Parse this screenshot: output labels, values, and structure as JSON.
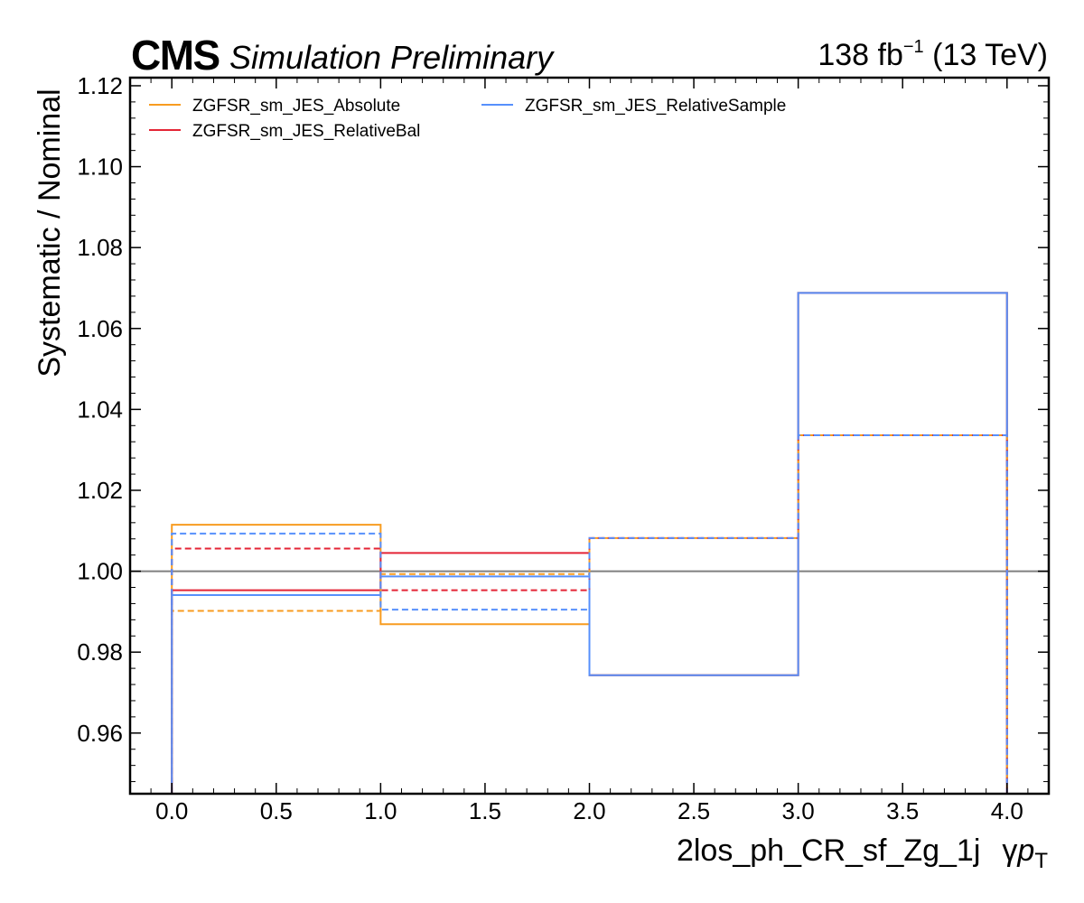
{
  "header": {
    "experiment": "CMS",
    "status": "Simulation Preliminary",
    "lumi_value": "138 fb",
    "lumi_exp": "−1",
    "energy": " (13 TeV)"
  },
  "chart_data": {
    "type": "line",
    "subtype": "step-histogram",
    "ylabel": "Systematic / Nominal",
    "xlabel_main": "2los_ph_CR_sf_Zg_1j",
    "xlabel_var": "γ",
    "xlabel_p": "p",
    "xlabel_sub": "T",
    "xlim": [
      -0.2,
      4.2
    ],
    "ylim": [
      0.945,
      1.122
    ],
    "xticks": [
      0.0,
      0.5,
      1.0,
      1.5,
      2.0,
      2.5,
      3.0,
      3.5,
      4.0
    ],
    "xtick_labels": [
      "0.0",
      "0.5",
      "1.0",
      "1.5",
      "2.0",
      "2.5",
      "3.0",
      "3.5",
      "4.0"
    ],
    "yticks": [
      0.96,
      0.98,
      1.0,
      1.02,
      1.04,
      1.06,
      1.08,
      1.1,
      1.12
    ],
    "ytick_labels": [
      "0.96",
      "0.98",
      "1.00",
      "1.02",
      "1.04",
      "1.06",
      "1.08",
      "1.10",
      "1.12"
    ],
    "bin_edges": [
      0,
      1,
      2,
      3,
      4
    ],
    "reference_line": 1.0,
    "legend_position": "top-left",
    "series": [
      {
        "name": "ZGFSR_sm_JES_Absolute",
        "color": "#f89c20",
        "style": "solid",
        "values": [
          1.0115,
          0.9869,
          0.9743,
          1.0688
        ]
      },
      {
        "name": "ZGFSR_sm_JES_RelativeBal",
        "color": "#e42536",
        "style": "solid",
        "values": [
          0.9953,
          1.0045,
          0.9743,
          1.0688
        ]
      },
      {
        "name": "ZGFSR_sm_JES_RelativeSample",
        "color": "#5790fc",
        "style": "solid",
        "values": [
          0.9941,
          0.9987,
          0.9743,
          1.0688
        ]
      },
      {
        "name": "",
        "color": "#f89c20",
        "style": "dashed",
        "values": [
          0.9902,
          0.9993,
          1.0082,
          1.0336
        ]
      },
      {
        "name": "",
        "color": "#e42536",
        "style": "dashed",
        "values": [
          1.0056,
          0.9953,
          1.0082,
          1.0336
        ]
      },
      {
        "name": "",
        "color": "#5790fc",
        "style": "dashed",
        "values": [
          1.0093,
          0.9905,
          1.0082,
          1.0336
        ]
      }
    ]
  }
}
